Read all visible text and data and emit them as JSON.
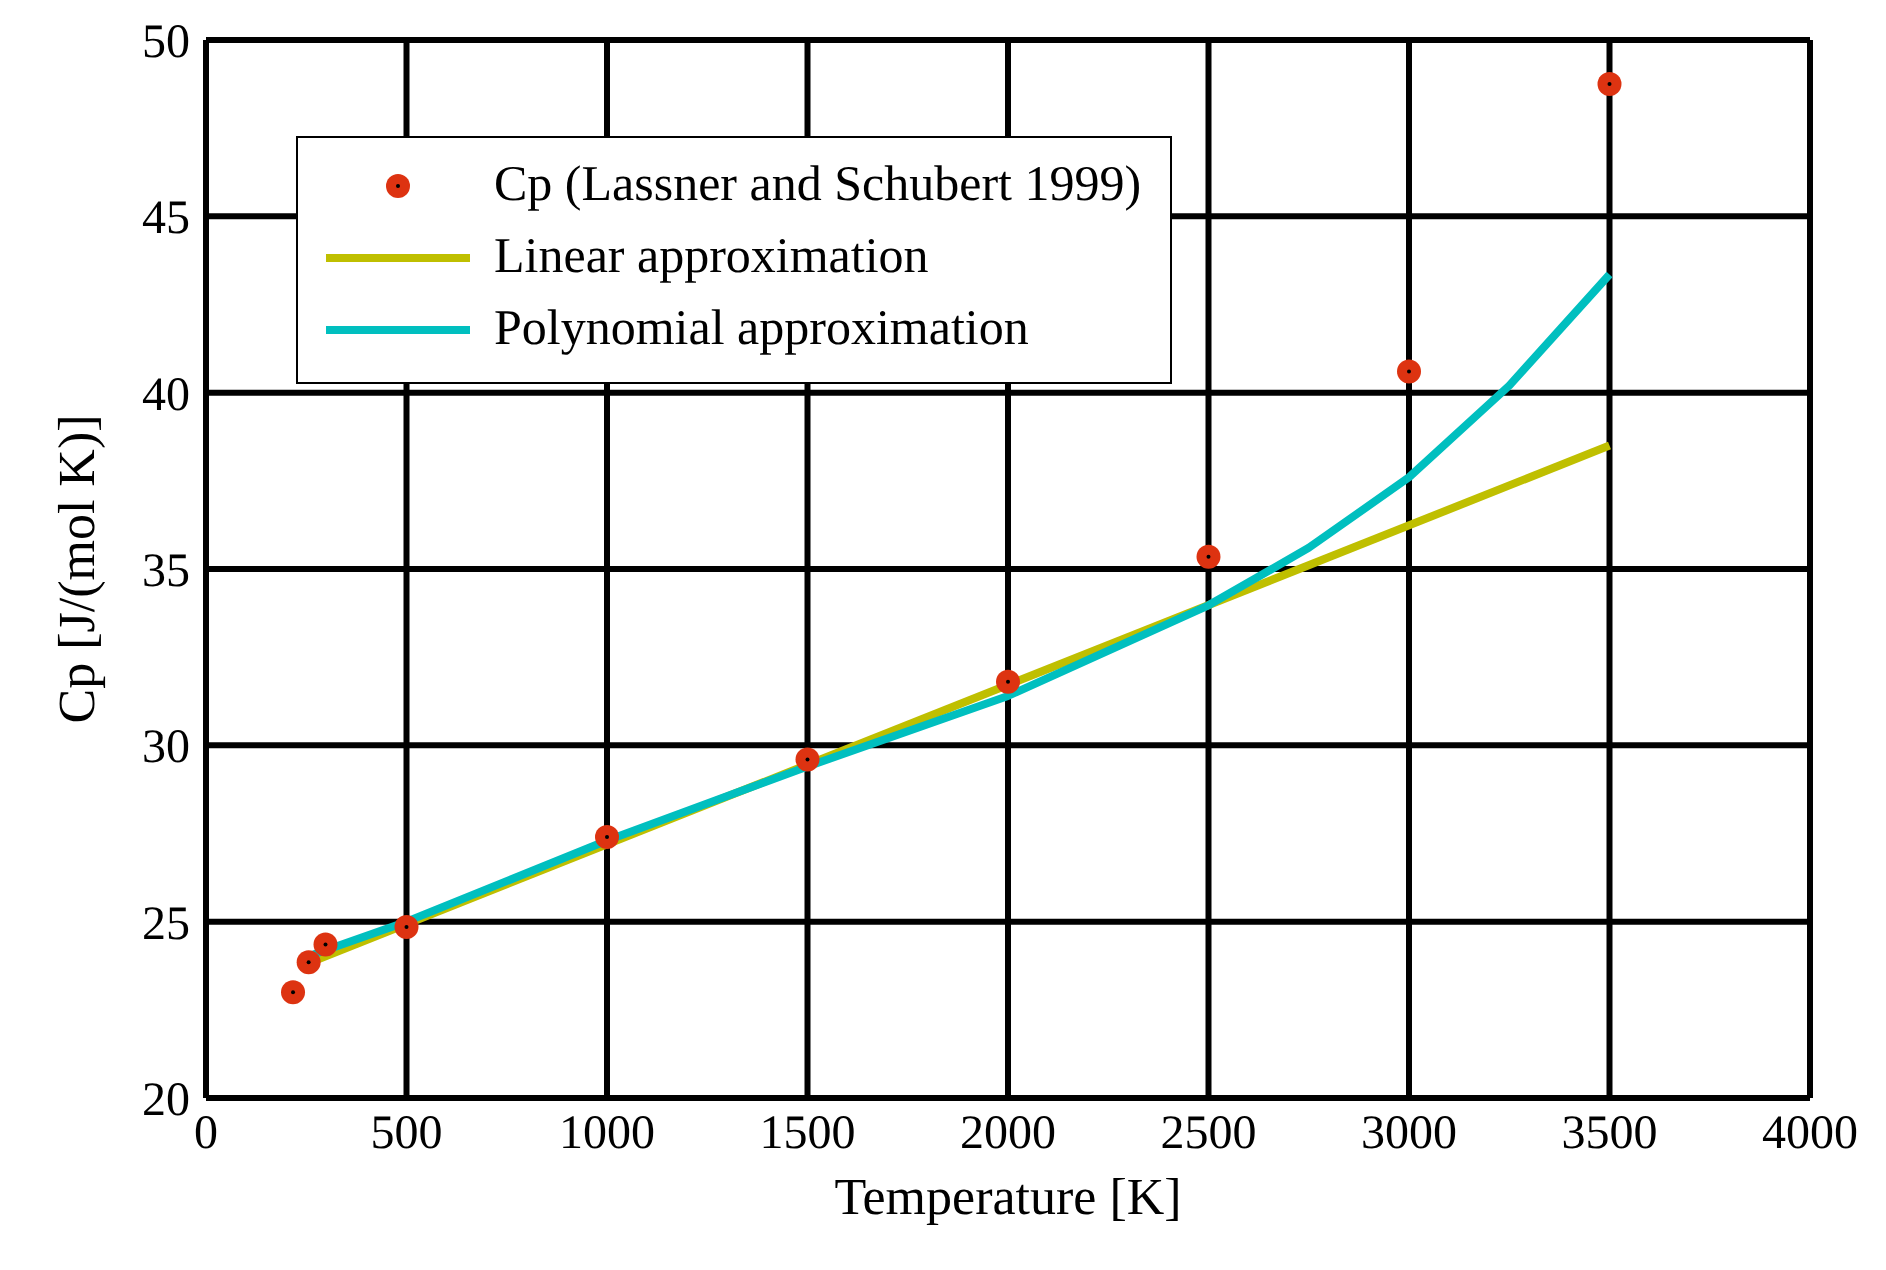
{
  "chart_data": {
    "type": "scatter",
    "xlabel": "Temperature [K]",
    "ylabel": "Cp [J/(mol K)]",
    "xlim": [
      0,
      4000
    ],
    "xticks": [
      0,
      500,
      1000,
      1500,
      2000,
      2500,
      3000,
      3500,
      4000
    ],
    "ylim": [
      20,
      50
    ],
    "yticks": [
      20,
      25,
      30,
      35,
      40,
      45,
      50
    ],
    "grid": true,
    "legend": "top left",
    "series": [
      {
        "name": "Cp (Lassner and Schubert 1999)",
        "marker": "circle",
        "color": "#dd3311",
        "x": [
          217,
          256,
          298,
          500,
          1000,
          1500,
          2000,
          2500,
          3000,
          3500
        ],
        "values": [
          23.0,
          23.85,
          24.35,
          24.85,
          27.4,
          29.6,
          31.8,
          35.35,
          40.6,
          48.75
        ]
      },
      {
        "name": "Linear approximation",
        "type": "line",
        "marker": "none",
        "color": "#bfbf00",
        "x": [
          250,
          3500
        ],
        "values": [
          23.8,
          38.5
        ]
      },
      {
        "name": "Polynomial approximation",
        "type": "line",
        "marker": "none",
        "color": "#00bfbf",
        "x": [
          250,
          500,
          1000,
          1500,
          2000,
          2500,
          2750,
          3000,
          3250,
          3500
        ],
        "values": [
          24.0,
          25.0,
          27.3,
          29.4,
          31.4,
          33.97,
          35.6,
          37.6,
          40.2,
          43.35
        ]
      }
    ]
  }
}
